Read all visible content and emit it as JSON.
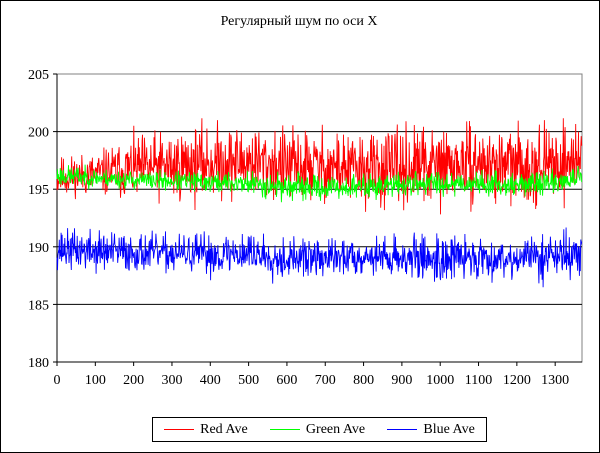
{
  "chart_data": {
    "type": "line",
    "title": "Регулярный шум по оси X",
    "xlabel": "",
    "ylabel": "",
    "xlim": [
      0,
      1370
    ],
    "ylim": [
      180,
      205
    ],
    "x_ticks": [
      0,
      100,
      200,
      300,
      400,
      500,
      600,
      700,
      800,
      900,
      1000,
      1100,
      1200,
      1300
    ],
    "y_ticks": [
      180,
      185,
      190,
      195,
      200,
      205
    ],
    "grid": "horizontal",
    "legend_position": "bottom",
    "series": [
      {
        "name": "Red Ave",
        "color": "#ff0000",
        "x": [
          0,
          100,
          200,
          300,
          400,
          500,
          600,
          700,
          800,
          900,
          1000,
          1100,
          1200,
          1300,
          1370
        ],
        "mean": [
          196.0,
          196.3,
          196.8,
          197.0,
          197.3,
          197.4,
          197.0,
          197.0,
          196.7,
          196.8,
          197.0,
          197.2,
          197.0,
          197.2,
          197.8
        ],
        "range": [
          [
            194.0,
            198.5
          ],
          [
            194.3,
            199.0
          ],
          [
            193.5,
            200.5
          ],
          [
            193.0,
            200.8
          ],
          [
            193.3,
            201.5
          ],
          [
            193.0,
            201.0
          ],
          [
            192.5,
            200.8
          ],
          [
            193.0,
            201.0
          ],
          [
            192.5,
            200.5
          ],
          [
            192.5,
            201.0
          ],
          [
            192.8,
            201.3
          ],
          [
            193.0,
            200.8
          ],
          [
            193.0,
            201.0
          ],
          [
            192.8,
            201.0
          ],
          [
            193.5,
            201.5
          ]
        ]
      },
      {
        "name": "Green Ave",
        "color": "#00ff00",
        "x": [
          0,
          100,
          200,
          300,
          400,
          500,
          600,
          700,
          800,
          900,
          1000,
          1100,
          1200,
          1300,
          1370
        ],
        "mean": [
          196.2,
          196.0,
          195.8,
          195.7,
          195.6,
          195.5,
          195.2,
          195.1,
          195.2,
          195.4,
          195.6,
          195.5,
          195.4,
          195.6,
          196.0
        ],
        "range": [
          [
            195.0,
            197.5
          ],
          [
            195.0,
            197.0
          ],
          [
            194.8,
            196.8
          ],
          [
            194.6,
            196.7
          ],
          [
            194.5,
            196.8
          ],
          [
            194.3,
            197.0
          ],
          [
            193.8,
            196.7
          ],
          [
            194.0,
            196.5
          ],
          [
            194.0,
            196.7
          ],
          [
            194.2,
            196.8
          ],
          [
            194.3,
            197.0
          ],
          [
            194.2,
            196.8
          ],
          [
            194.3,
            196.6
          ],
          [
            194.5,
            197.0
          ],
          [
            195.0,
            197.5
          ]
        ]
      },
      {
        "name": "Blue Ave",
        "color": "#0000ff",
        "x": [
          0,
          100,
          200,
          300,
          400,
          500,
          600,
          700,
          800,
          900,
          1000,
          1100,
          1200,
          1300,
          1370
        ],
        "mean": [
          189.8,
          189.6,
          189.5,
          189.4,
          189.3,
          189.5,
          189.0,
          189.0,
          189.2,
          189.1,
          189.0,
          189.1,
          189.0,
          189.3,
          189.2
        ],
        "range": [
          [
            187.8,
            192.0
          ],
          [
            187.5,
            192.2
          ],
          [
            187.3,
            191.5
          ],
          [
            187.2,
            191.3
          ],
          [
            187.0,
            191.5
          ],
          [
            187.3,
            192.0
          ],
          [
            186.5,
            191.0
          ],
          [
            186.8,
            190.8
          ],
          [
            187.0,
            191.0
          ],
          [
            186.8,
            191.2
          ],
          [
            185.8,
            191.3
          ],
          [
            186.5,
            191.0
          ],
          [
            186.8,
            191.0
          ],
          [
            186.2,
            191.8
          ],
          [
            186.0,
            191.5
          ]
        ]
      }
    ]
  }
}
